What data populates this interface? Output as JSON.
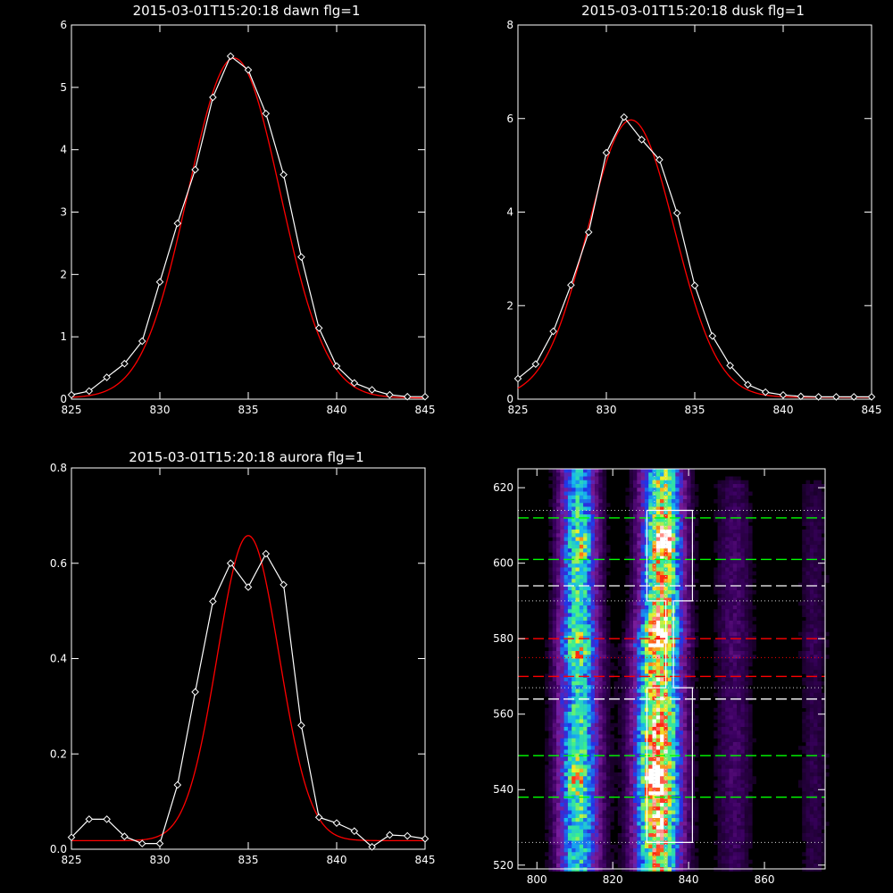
{
  "colors": {
    "background": "#000000",
    "axis": "#ffffff",
    "data_line": "#ffffff",
    "fit_line": "#ff0000",
    "green_dash": "#00ff00",
    "red_dash": "#ff0000",
    "white_dash": "#ffffff",
    "dotted_line": "#d8d8d8"
  },
  "chart_data": [
    {
      "id": "dawn",
      "type": "line",
      "title": "2015-03-01T15:20:18 dawn flg=1",
      "xlabel": "",
      "ylabel": "",
      "xlim": [
        825,
        845
      ],
      "ylim": [
        0,
        6
      ],
      "x_ticks": [
        "825",
        "830",
        "835",
        "840",
        "845"
      ],
      "y_ticks": [
        "0",
        "1",
        "2",
        "3",
        "4",
        "5",
        "6"
      ],
      "grid": false,
      "series": [
        {
          "style": "data-diamonds",
          "color": "#ffffff",
          "x": [
            825,
            826,
            827,
            828,
            829,
            830,
            831,
            832,
            833,
            834,
            835,
            836,
            837,
            838,
            839,
            840,
            841,
            842,
            843,
            844,
            845
          ],
          "y": [
            0.07,
            0.13,
            0.35,
            0.57,
            0.93,
            1.88,
            2.82,
            3.68,
            4.84,
            5.5,
            5.28,
            4.58,
            3.6,
            2.28,
            1.14,
            0.53,
            0.26,
            0.15,
            0.07,
            0.04,
            0.04
          ]
        },
        {
          "style": "gaussian-fit",
          "color": "#ff0000",
          "amplitude": 5.45,
          "center": 834.2,
          "sigma": 2.6,
          "offset": 0.02
        }
      ]
    },
    {
      "id": "dusk",
      "type": "line",
      "title": "2015-03-01T15:20:18 dusk flg=1",
      "xlabel": "",
      "ylabel": "",
      "xlim": [
        825,
        845
      ],
      "ylim": [
        0,
        8
      ],
      "x_ticks": [
        "825",
        "830",
        "835",
        "840",
        "845"
      ],
      "y_ticks": [
        "0",
        "2",
        "4",
        "6",
        "8"
      ],
      "grid": false,
      "series": [
        {
          "style": "data-diamonds",
          "color": "#ffffff",
          "x": [
            825,
            826,
            827,
            828,
            829,
            830,
            831,
            832,
            833,
            834,
            835,
            836,
            837,
            838,
            839,
            840,
            841,
            842,
            843,
            844,
            845
          ],
          "y": [
            0.44,
            0.75,
            1.45,
            2.44,
            3.57,
            5.27,
            6.03,
            5.55,
            5.12,
            3.98,
            2.43,
            1.35,
            0.72,
            0.31,
            0.15,
            0.09,
            0.06,
            0.05,
            0.05,
            0.05,
            0.05
          ]
        },
        {
          "style": "gaussian-fit",
          "color": "#ff0000",
          "amplitude": 5.93,
          "center": 831.4,
          "sigma": 2.45,
          "offset": 0.04
        }
      ]
    },
    {
      "id": "aurora",
      "type": "line",
      "title": "2015-03-01T15:20:18 aurora flg=1",
      "xlabel": "",
      "ylabel": "",
      "xlim": [
        825,
        845
      ],
      "ylim": [
        0,
        0.8
      ],
      "x_ticks": [
        "825",
        "830",
        "835",
        "840",
        "845"
      ],
      "y_ticks": [
        "0.0",
        "0.2",
        "0.4",
        "0.6",
        "0.8"
      ],
      "grid": false,
      "series": [
        {
          "style": "data-diamonds",
          "color": "#ffffff",
          "x": [
            825,
            826,
            827,
            828,
            829,
            830,
            831,
            832,
            833,
            834,
            835,
            836,
            837,
            838,
            839,
            840,
            841,
            842,
            843,
            844,
            845
          ],
          "y": [
            0.025,
            0.063,
            0.063,
            0.027,
            0.012,
            0.012,
            0.135,
            0.33,
            0.52,
            0.6,
            0.55,
            0.62,
            0.555,
            0.26,
            0.067,
            0.055,
            0.038,
            0.005,
            0.03,
            0.028,
            0.022
          ]
        },
        {
          "style": "gaussian-fit",
          "color": "#ff0000",
          "amplitude": 0.64,
          "center": 835.0,
          "sigma": 1.75,
          "offset": 0.018
        }
      ]
    },
    {
      "id": "image",
      "type": "heatmap",
      "title": "",
      "xlabel": "",
      "ylabel": "",
      "xlim": [
        795,
        876
      ],
      "ylim": [
        519,
        625
      ],
      "x_ticks": [
        800,
        820,
        840,
        860
      ],
      "y_ticks": [
        520,
        540,
        560,
        580,
        600,
        620
      ],
      "colormap": [
        "#000000",
        "#3a0060",
        "#7a1c9a",
        "#2033e8",
        "#17b7f0",
        "#3cf08c",
        "#f4ee28",
        "#ff2010",
        "#ffffff"
      ],
      "bands": [
        {
          "x": 811,
          "y_center": 602,
          "y_span": 44,
          "x_span": 9,
          "intensity": 0.6
        },
        {
          "x": 811,
          "y_center": 543,
          "y_span": 64,
          "x_span": 10,
          "intensity": 0.62
        },
        {
          "x": 833,
          "y_center": 605,
          "y_span": 44,
          "x_span": 10,
          "intensity": 0.78
        },
        {
          "x": 832,
          "y_center": 546,
          "y_span": 64,
          "x_span": 11,
          "intensity": 0.9
        },
        {
          "x": 852,
          "y_center": 600,
          "y_span": 40,
          "x_span": 9,
          "intensity": 0.14
        },
        {
          "x": 852,
          "y_center": 545,
          "y_span": 60,
          "x_span": 9,
          "intensity": 0.14
        },
        {
          "x": 873,
          "y_center": 600,
          "y_span": 40,
          "x_span": 7,
          "intensity": 0.1
        },
        {
          "x": 873,
          "y_center": 545,
          "y_span": 60,
          "x_span": 7,
          "intensity": 0.1
        }
      ],
      "hotspots": [
        {
          "x": 834,
          "y": 606,
          "intensity": 1.5
        },
        {
          "x": 831,
          "y": 543,
          "intensity": 1.9
        },
        {
          "x": 810,
          "y": 543,
          "intensity": 0.5
        },
        {
          "x": 812,
          "y": 604,
          "intensity": 0.4
        }
      ],
      "hlines": [
        {
          "y": 612,
          "style": "dashed",
          "color": "#00ff00"
        },
        {
          "y": 601,
          "style": "dashed",
          "color": "#00ff00"
        },
        {
          "y": 549,
          "style": "dashed",
          "color": "#00ff00"
        },
        {
          "y": 538,
          "style": "dashed",
          "color": "#00ff00"
        },
        {
          "y": 580,
          "style": "dashed",
          "color": "#ff0000"
        },
        {
          "y": 570,
          "style": "dashed",
          "color": "#ff0000"
        },
        {
          "y": 594,
          "style": "dashed",
          "color": "#ffffff"
        },
        {
          "y": 564,
          "style": "dashed",
          "color": "#ffffff"
        },
        {
          "y": 614,
          "style": "dotted",
          "color": "#d8d8d8"
        },
        {
          "y": 590,
          "style": "dotted",
          "color": "#d8d8d8"
        },
        {
          "y": 567,
          "style": "dotted",
          "color": "#d8d8d8"
        },
        {
          "y": 526,
          "style": "dotted",
          "color": "#d8d8d8"
        },
        {
          "y": 575,
          "style": "dotted",
          "color": "#ff0000"
        }
      ],
      "vlines": [
        {
          "x": 831,
          "style": "dotted",
          "color": "#d8d8d8"
        },
        {
          "x": 834,
          "style": "dotted",
          "color": "#d8d8d8"
        }
      ],
      "outline": [
        [
          829,
          614
        ],
        [
          841,
          614
        ],
        [
          841,
          590
        ],
        [
          836,
          590
        ],
        [
          836,
          567
        ],
        [
          841,
          567
        ],
        [
          841,
          526
        ],
        [
          829,
          526
        ],
        [
          829,
          567
        ],
        [
          834,
          567
        ],
        [
          834,
          590
        ],
        [
          829,
          590
        ],
        [
          829,
          614
        ]
      ]
    }
  ]
}
